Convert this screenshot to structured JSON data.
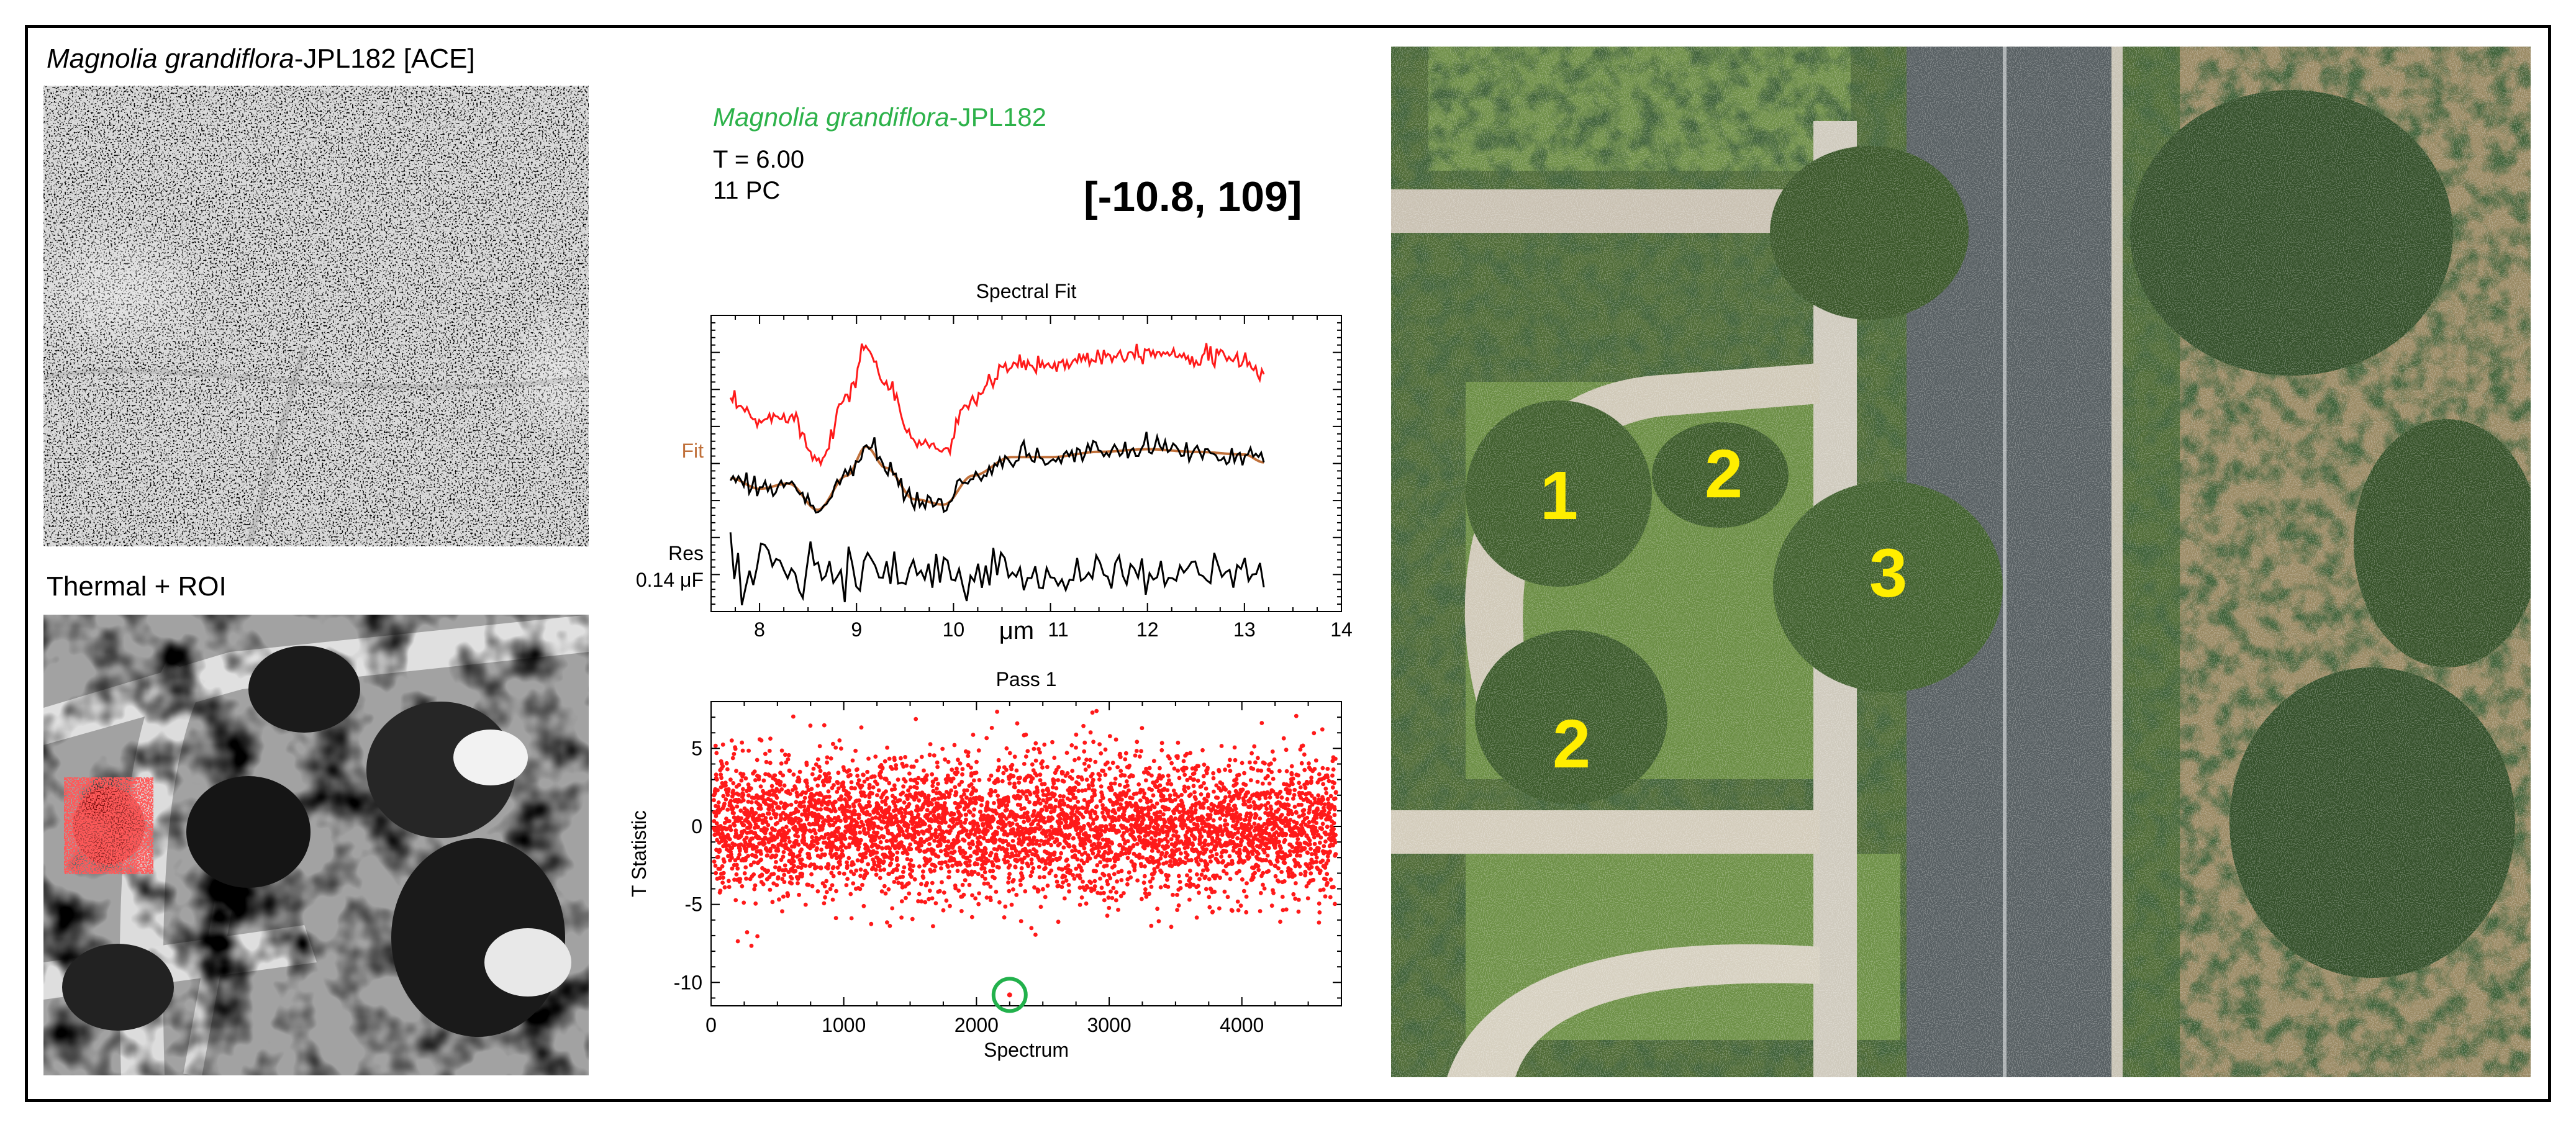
{
  "ace_panel": {
    "species": "Magnolia grandiflora",
    "suffix": "-JPL182  [ACE]"
  },
  "thermal_panel": {
    "title": "Thermal + ROI"
  },
  "info": {
    "species": "Magnolia grandiflora",
    "suffix": "-JPL182",
    "threshold": "T = 6.00",
    "pc": "11 PC",
    "coords": "[-10.8, 109]",
    "fit_label": "Fit",
    "res_label": "Res",
    "res_value": "0.14 μF"
  },
  "aerial_labels": [
    "1",
    "2",
    "3",
    "2"
  ],
  "colors": {
    "species_green": "#2db24a",
    "red": "#ff1a1a",
    "fit": "#c0703a",
    "marker": "#22b14c",
    "tree_label": "#ffee00"
  },
  "chart_data": [
    {
      "type": "line",
      "title": "Spectral Fit",
      "xlabel": "μm",
      "xlim": [
        7.5,
        14
      ],
      "xticks": [
        8,
        9,
        10,
        11,
        12,
        13,
        14
      ],
      "series": [
        {
          "x": [
            7.7,
            8.0,
            8.3,
            8.6,
            8.9,
            9.1,
            9.3,
            9.6,
            9.9,
            10.2,
            10.6,
            11.0,
            11.5,
            12.0,
            12.5,
            13.0,
            13.2
          ],
          "y": [
            0.82,
            0.78,
            0.8,
            0.7,
            0.83,
            0.94,
            0.86,
            0.74,
            0.72,
            0.83,
            0.9,
            0.9,
            0.92,
            0.93,
            0.92,
            0.91,
            0.88
          ]
        }
      ]
    },
    {
      "type": "scatter",
      "title": "Pass 1",
      "xlabel": "Spectrum",
      "ylabel": "T Statistic",
      "xlim": [
        0,
        4750
      ],
      "ylim": [
        -11.5,
        8
      ],
      "xticks": [
        0,
        1000,
        2000,
        3000,
        4000
      ],
      "yticks": [
        5,
        0,
        -5,
        -10
      ],
      "n_points": 4700,
      "mean": 0,
      "spread": 2.2,
      "highlight": {
        "x": 2250,
        "y": -10.8
      }
    }
  ]
}
